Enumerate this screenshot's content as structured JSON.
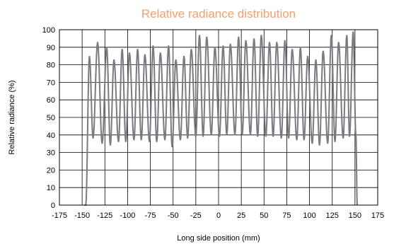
{
  "chart_data": {
    "type": "line",
    "title": "Relative radiance distribution",
    "xlabel": "Long side position (mm)",
    "ylabel": "Relative radiance (%)",
    "xlim": [
      -175,
      175
    ],
    "ylim": [
      0,
      100
    ],
    "xticks": [
      -175,
      -150,
      -125,
      -100,
      -75,
      -50,
      -25,
      0,
      25,
      50,
      75,
      100,
      125,
      150,
      175
    ],
    "yticks": [
      0,
      10,
      20,
      30,
      40,
      50,
      60,
      70,
      80,
      90,
      100
    ],
    "grid": true,
    "legend": "none",
    "colors": {
      "title": "#f0a070",
      "line": "#7a7a82",
      "grid": "#000000"
    },
    "series": [
      {
        "peaks_x": [
          -142,
          -133,
          -123,
          -115,
          -106,
          -98,
          -89,
          -81,
          -72,
          -64,
          -55,
          -47,
          -38,
          -30,
          -21,
          -13,
          -4,
          5,
          13,
          22,
          30,
          39,
          47,
          56,
          64,
          73,
          81,
          90,
          98,
          107,
          115,
          124,
          132,
          141,
          148
        ],
        "peaks_y": [
          85,
          93,
          90,
          83,
          89,
          87,
          89,
          86,
          91,
          87,
          91,
          83,
          85,
          89,
          97,
          96,
          90,
          91,
          92,
          96,
          94,
          95,
          97,
          93,
          93,
          94,
          89,
          90,
          85,
          83,
          88,
          97,
          93,
          97,
          99
        ],
        "troughs_x": [
          -138,
          -128,
          -119,
          -110,
          -102,
          -93,
          -85,
          -76,
          -68,
          -59,
          -51,
          -42,
          -34,
          -25,
          -17,
          -8,
          1,
          9,
          18,
          26,
          35,
          43,
          52,
          60,
          69,
          77,
          86,
          94,
          103,
          111,
          120,
          128,
          137,
          144
        ],
        "troughs_y": [
          38,
          35,
          34,
          36,
          36,
          37,
          37,
          36,
          36,
          37,
          33,
          37,
          38,
          39,
          39,
          40,
          39,
          40,
          40,
          40,
          40,
          39,
          39,
          39,
          38,
          38,
          37,
          37,
          35,
          34,
          35,
          36,
          38,
          39
        ],
        "edge_x": [
          -147.5,
          -146
        ],
        "edge_y": [
          0,
          0
        ],
        "end_x": [
          151,
          152.5
        ],
        "end_y": [
          40,
          0
        ]
      }
    ]
  }
}
